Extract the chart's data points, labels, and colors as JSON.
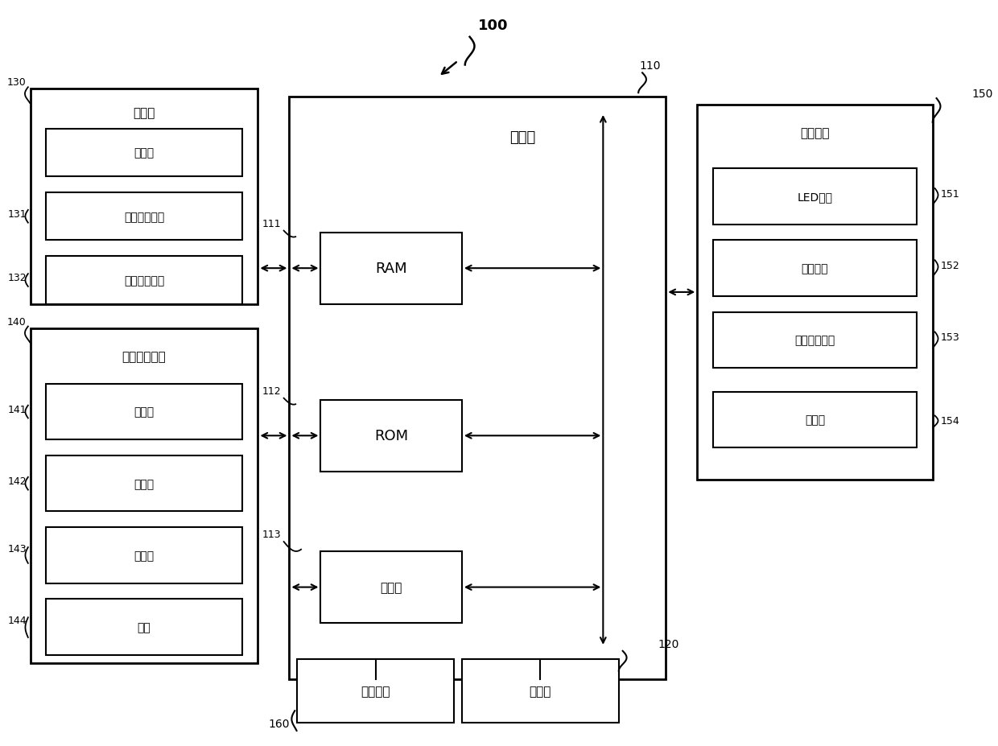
{
  "bg_color": "#ffffff",
  "line_color": "#000000",
  "box_fill": "#ffffff",
  "figsize": [
    12.4,
    9.28
  ],
  "dpi": 100,
  "label_100": "100",
  "label_110": "110",
  "label_120": "120",
  "label_130": "130",
  "label_131": "131",
  "label_132": "132",
  "label_140": "140",
  "label_141": "141",
  "label_142": "142",
  "label_143": "143",
  "label_144": "144",
  "label_150": "150",
  "label_151": "151",
  "label_152": "152",
  "label_153": "153",
  "label_154": "154",
  "label_160": "160",
  "label_111": "111",
  "label_112": "112",
  "label_113": "113",
  "ctrl_title": "控制器",
  "ram_label": "RAM",
  "rom_label": "ROM",
  "proc_label": "处理器",
  "storage_label": "存储器",
  "power_label": "供电电源",
  "comm_title": "通信器",
  "ir_label": "红外信号接口",
  "rf_label": "射频信号接口",
  "user_title": "用户输入接口",
  "mic_label": "麦克风",
  "touch_label": "触摸板",
  "sensor_label": "传感器",
  "btn_label": "按键",
  "out_title": "输出接口",
  "led_label": "LED接口",
  "vib_label": "振动接口",
  "audio_label": "声音输出接口",
  "disp_label": "显示器"
}
